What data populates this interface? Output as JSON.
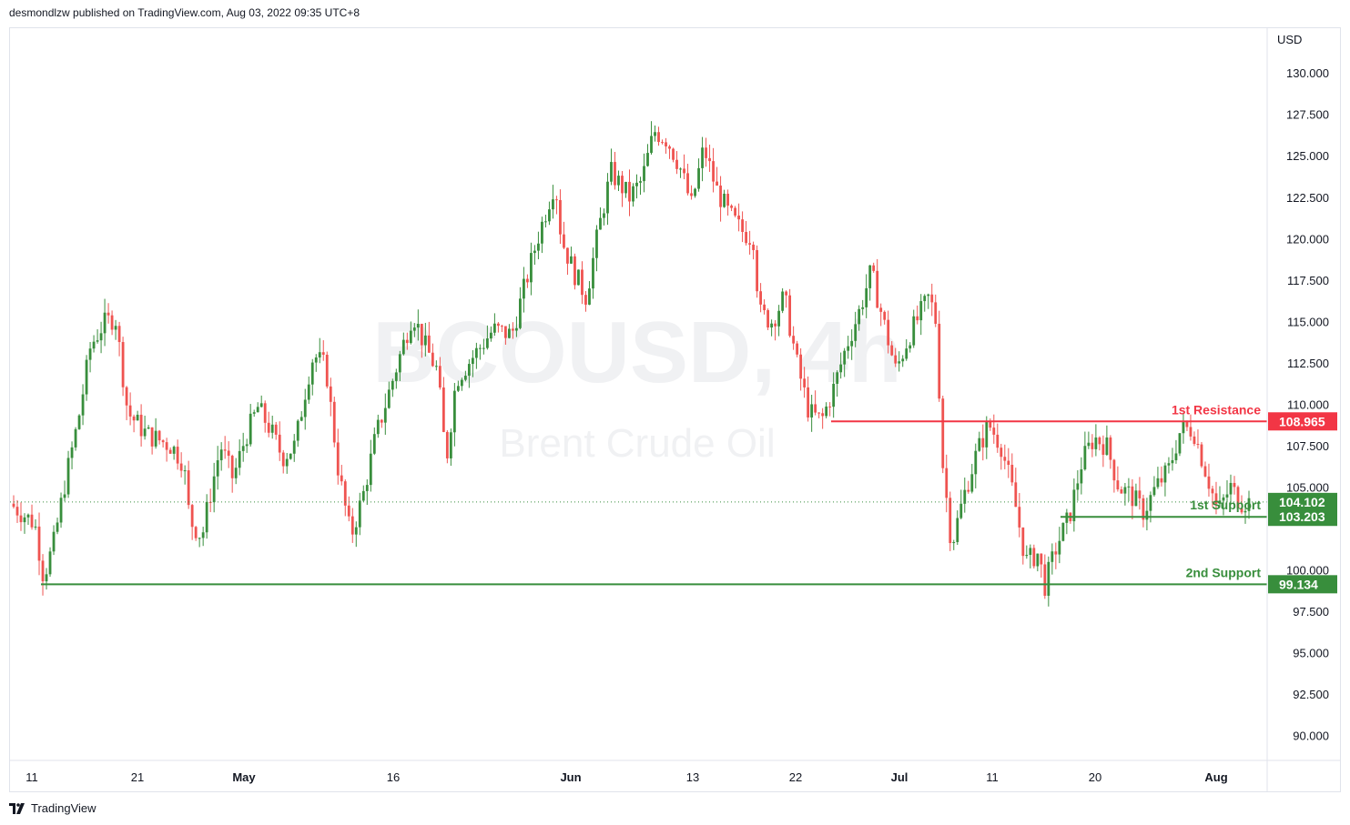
{
  "header": {
    "published_text": "desmondlzw published on TradingView.com, Aug 03, 2022 09:35 UTC+8"
  },
  "footer": {
    "brand": "TradingView"
  },
  "watermark": {
    "symbol": "BCOUSD, 4h",
    "name": "Brent Crude Oil"
  },
  "colors": {
    "up": "#388e3c",
    "down": "#ef5350",
    "resistance": "#f23645",
    "support": "#388e3c",
    "axis_text": "#131722",
    "grid_border": "#e0e3eb",
    "watermark": "#f0f1f3"
  },
  "chart_data": {
    "type": "candlestick",
    "symbol": "BCOUSD",
    "timeframe": "4h",
    "currency": "USD",
    "y_axis": {
      "unit_label": "USD",
      "ylim": [
        88.5,
        132.7
      ],
      "ticks": [
        "90.000",
        "92.500",
        "95.000",
        "97.500",
        "100.000",
        "105.000",
        "107.500",
        "110.000",
        "112.500",
        "115.000",
        "117.500",
        "120.000",
        "122.500",
        "125.000",
        "127.500",
        "130.000"
      ]
    },
    "x_axis": {
      "tick_labels": [
        "11",
        "21",
        "May",
        "16",
        "Jun",
        "13",
        "22",
        "Jul",
        "11",
        "20",
        "Aug"
      ]
    },
    "levels": [
      {
        "name": "1st Resistance",
        "value": 108.965,
        "value_label": "108.965",
        "type": "resistance"
      },
      {
        "name": "1st Support",
        "value": 103.203,
        "value_label": "103.203",
        "type": "support"
      },
      {
        "name": "2nd Support",
        "value": 99.134,
        "value_label": "99.134",
        "type": "support"
      }
    ],
    "last_price": {
      "value": 104.102,
      "value_label": "104.102"
    },
    "price_path": [
      [
        0,
        104.0
      ],
      [
        0.02,
        102.8
      ],
      [
        0.027,
        99.6
      ],
      [
        0.035,
        101.5
      ],
      [
        0.045,
        105.5
      ],
      [
        0.055,
        109.0
      ],
      [
        0.065,
        113.5
      ],
      [
        0.075,
        114.8
      ],
      [
        0.085,
        115.3
      ],
      [
        0.095,
        109.5
      ],
      [
        0.11,
        108.2
      ],
      [
        0.13,
        107.5
      ],
      [
        0.14,
        106.5
      ],
      [
        0.145,
        103.0
      ],
      [
        0.155,
        102.0
      ],
      [
        0.16,
        104.0
      ],
      [
        0.17,
        107.5
      ],
      [
        0.18,
        105.5
      ],
      [
        0.19,
        108.0
      ],
      [
        0.2,
        109.8
      ],
      [
        0.21,
        108.5
      ],
      [
        0.22,
        106.8
      ],
      [
        0.23,
        107.5
      ],
      [
        0.24,
        111.5
      ],
      [
        0.245,
        113.0
      ],
      [
        0.255,
        112.2
      ],
      [
        0.265,
        106.0
      ],
      [
        0.275,
        102.0
      ],
      [
        0.285,
        104.5
      ],
      [
        0.295,
        108.0
      ],
      [
        0.305,
        110.5
      ],
      [
        0.315,
        113.0
      ],
      [
        0.325,
        115.5
      ],
      [
        0.335,
        113.5
      ],
      [
        0.345,
        112.0
      ],
      [
        0.352,
        106.5
      ],
      [
        0.36,
        111.5
      ],
      [
        0.375,
        113.0
      ],
      [
        0.39,
        114.5
      ],
      [
        0.405,
        114.2
      ],
      [
        0.415,
        117.0
      ],
      [
        0.425,
        119.8
      ],
      [
        0.44,
        123.5
      ],
      [
        0.445,
        120.0
      ],
      [
        0.455,
        118.0
      ],
      [
        0.465,
        116.5
      ],
      [
        0.475,
        120.5
      ],
      [
        0.485,
        124.0
      ],
      [
        0.5,
        122.5
      ],
      [
        0.51,
        123.5
      ],
      [
        0.52,
        126.5
      ],
      [
        0.53,
        126.0
      ],
      [
        0.54,
        124.5
      ],
      [
        0.55,
        122.0
      ],
      [
        0.56,
        125.5
      ],
      [
        0.57,
        123.0
      ],
      [
        0.58,
        121.5
      ],
      [
        0.59,
        120.5
      ],
      [
        0.6,
        120.0
      ],
      [
        0.605,
        115.5
      ],
      [
        0.615,
        115.0
      ],
      [
        0.625,
        116.5
      ],
      [
        0.635,
        112.5
      ],
      [
        0.645,
        109.5
      ],
      [
        0.655,
        109.0
      ],
      [
        0.665,
        111.0
      ],
      [
        0.675,
        113.5
      ],
      [
        0.685,
        115.5
      ],
      [
        0.695,
        118.0
      ],
      [
        0.705,
        115.0
      ],
      [
        0.715,
        112.0
      ],
      [
        0.725,
        114.0
      ],
      [
        0.735,
        115.5
      ],
      [
        0.742,
        116.5
      ],
      [
        0.748,
        114.8
      ],
      [
        0.752,
        107.0
      ],
      [
        0.76,
        101.5
      ],
      [
        0.77,
        104.5
      ],
      [
        0.78,
        107.0
      ],
      [
        0.79,
        108.8
      ],
      [
        0.8,
        107.5
      ],
      [
        0.81,
        104.5
      ],
      [
        0.82,
        100.5
      ],
      [
        0.83,
        101.0
      ],
      [
        0.835,
        99.0
      ],
      [
        0.845,
        101.5
      ],
      [
        0.855,
        103.2
      ],
      [
        0.865,
        106.5
      ],
      [
        0.875,
        108.0
      ],
      [
        0.885,
        107.5
      ],
      [
        0.895,
        105.0
      ],
      [
        0.905,
        104.5
      ],
      [
        0.915,
        103.5
      ],
      [
        0.925,
        105.0
      ],
      [
        0.935,
        106.0
      ],
      [
        0.945,
        108.5
      ],
      [
        0.955,
        108.5
      ],
      [
        0.965,
        106.0
      ],
      [
        0.975,
        103.5
      ],
      [
        0.985,
        105.0
      ],
      [
        0.993,
        104.1
      ]
    ]
  }
}
